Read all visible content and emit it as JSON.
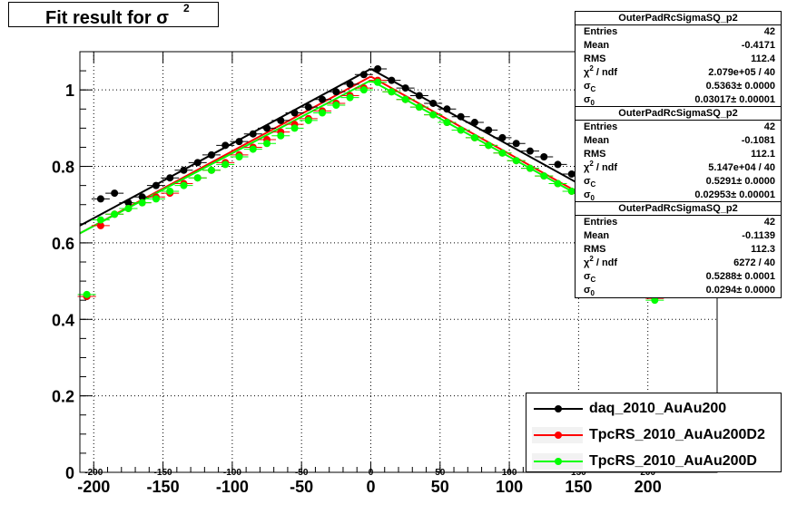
{
  "title": {
    "main": "Fit result for σ",
    "superscript": "2"
  },
  "stats": [
    {
      "name": "OuterPadRcSigmaSQ_p2",
      "entries": "42",
      "mean": "-0.4171",
      "rms": "112.4",
      "chi2ndf": "2.079e+05 / 40",
      "sigma_c": "0.5363± 0.0000",
      "sigma_0": "0.03017± 0.00001"
    },
    {
      "name": "OuterPadRcSigmaSQ_p2",
      "entries": "42",
      "mean": "-0.1081",
      "rms": "112.1",
      "chi2ndf": "5.147e+04 / 40",
      "sigma_c": "0.5291± 0.0000",
      "sigma_0": "0.02953± 0.00001"
    },
    {
      "name": "OuterPadRcSigmaSQ_p2",
      "entries": "42",
      "mean": "-0.1139",
      "rms": "112.3",
      "chi2ndf": "6272 / 40",
      "sigma_c": "0.5288± 0.0001",
      "sigma_0": "0.0294± 0.0000"
    }
  ],
  "stat_labels": {
    "entries": "Entries",
    "mean": "Mean",
    "rms": "RMS",
    "chi": "χ",
    "chi_sup": "2",
    "ndf": " / ndf",
    "sigma": "σ",
    "c": "C",
    "zero": "0"
  },
  "colors": {
    "daq": "#000000",
    "d2": "#ff0000",
    "d": "#00ff00"
  },
  "chart_data": {
    "type": "scatter",
    "x_axis": {
      "ticks": [
        "-200",
        "-150",
        "-100",
        "-50",
        "0",
        "50",
        "100",
        "150",
        "200"
      ],
      "top_ticks": [
        "-200",
        "-150",
        "-100",
        "-50",
        "0",
        "50",
        "100",
        "150",
        "200"
      ],
      "range": [
        -210,
        250
      ],
      "grid": true
    },
    "y_axis": {
      "ticks": [
        "0",
        "0.2",
        "0.4",
        "0.6",
        "0.8",
        "1"
      ],
      "range": [
        0,
        1.1
      ],
      "grid": true
    },
    "x": [
      -205,
      -195,
      -185,
      -175,
      -165,
      -155,
      -145,
      -135,
      -125,
      -115,
      -105,
      -95,
      -85,
      -75,
      -65,
      -55,
      -45,
      -35,
      -25,
      -15,
      -5,
      5,
      15,
      25,
      35,
      45,
      55,
      65,
      75,
      85,
      95,
      105,
      115,
      125,
      135,
      145,
      155,
      165,
      175,
      185,
      195,
      205
    ],
    "series": [
      {
        "name": "daq_2010_AuAu200",
        "color": "#000000",
        "values": [
          0.46,
          0.715,
          0.73,
          0.705,
          0.72,
          0.75,
          0.77,
          0.79,
          0.81,
          0.83,
          0.855,
          0.865,
          0.885,
          0.9,
          0.92,
          0.94,
          0.955,
          0.975,
          0.995,
          1.015,
          1.04,
          1.055,
          1.025,
          1.005,
          0.985,
          0.965,
          0.95,
          0.93,
          0.915,
          0.895,
          0.875,
          0.86,
          0.84,
          0.825,
          0.805,
          0.78,
          0.77,
          0.745,
          0.73,
          0.71,
          0.69,
          0.46
        ]
      },
      {
        "name": "TpcRS_2010_AuAu200D2",
        "color": "#ff0000",
        "values": [
          0.46,
          0.645,
          0.675,
          0.69,
          0.705,
          0.72,
          0.73,
          0.755,
          0.77,
          0.79,
          0.81,
          0.83,
          0.85,
          0.87,
          0.89,
          0.91,
          0.925,
          0.945,
          0.965,
          0.985,
          1.005,
          1.025,
          0.995,
          0.975,
          0.955,
          0.935,
          0.915,
          0.895,
          0.875,
          0.855,
          0.835,
          0.815,
          0.795,
          0.775,
          0.755,
          0.735,
          0.715,
          0.7,
          0.68,
          0.665,
          0.645,
          0.455
        ]
      },
      {
        "name": "TpcRS_2010_AuAu200D",
        "color": "#00ff00",
        "values": [
          0.465,
          0.66,
          0.675,
          0.69,
          0.705,
          0.715,
          0.735,
          0.75,
          0.77,
          0.79,
          0.805,
          0.825,
          0.845,
          0.86,
          0.88,
          0.9,
          0.92,
          0.94,
          0.96,
          0.98,
          1.0,
          1.02,
          0.995,
          0.975,
          0.955,
          0.935,
          0.915,
          0.895,
          0.875,
          0.855,
          0.835,
          0.815,
          0.795,
          0.775,
          0.755,
          0.735,
          0.715,
          0.7,
          0.68,
          0.665,
          0.645,
          0.45
        ]
      }
    ],
    "fits": [
      {
        "series": "daq_2010_AuAu200",
        "left": [
          [
            -210,
            0.645
          ],
          [
            0,
            1.055
          ]
        ],
        "right": [
          [
            0,
            1.055
          ],
          [
            200,
            0.655
          ]
        ]
      },
      {
        "series": "TpcRS_2010_AuAu200D2",
        "left": [
          [
            -210,
            0.625
          ],
          [
            0,
            1.035
          ]
        ],
        "right": [
          [
            0,
            1.035
          ],
          [
            200,
            0.63
          ]
        ]
      },
      {
        "series": "TpcRS_2010_AuAu200D",
        "left": [
          [
            -210,
            0.625
          ],
          [
            0,
            1.025
          ]
        ],
        "right": [
          [
            0,
            1.025
          ],
          [
            200,
            0.625
          ]
        ]
      }
    ],
    "legend": {
      "position": "bottom-right",
      "entries": [
        "daq_2010_AuAu200",
        "TpcRS_2010_AuAu200D2",
        "TpcRS_2010_AuAu200D"
      ]
    }
  }
}
